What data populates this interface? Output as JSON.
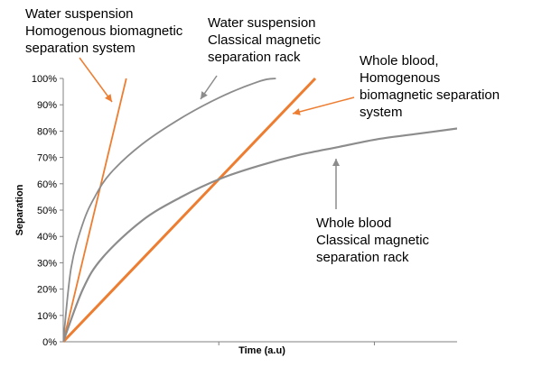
{
  "chart_data": {
    "type": "line",
    "xlabel": "Time (a.u)",
    "ylabel": "Separation",
    "xlim": [
      0,
      1
    ],
    "ylim": [
      0,
      100
    ],
    "y_ticks": [
      "0%",
      "10%",
      "20%",
      "30%",
      "40%",
      "50%",
      "60%",
      "70%",
      "80%",
      "90%",
      "100%"
    ],
    "grid": false,
    "series": [
      {
        "label": "Water suspension Homogenous biomagnetic separation system",
        "color": "#ed7d31",
        "x": [
          0,
          0.16
        ],
        "y": [
          0,
          100
        ]
      },
      {
        "label": "Water suspension Classical magnetic separation rack",
        "color": "#8c8c8c",
        "x": [
          0,
          0.02,
          0.05,
          0.08,
          0.12,
          0.2,
          0.3,
          0.4,
          0.5,
          0.54
        ],
        "y": [
          0,
          28,
          45,
          55,
          64,
          75,
          85,
          93,
          99,
          100
        ]
      },
      {
        "label": "Whole blood, Homogenous biomagnetic separation system",
        "color": "#ed7d31",
        "x": [
          0,
          0.64
        ],
        "y": [
          0,
          100
        ]
      },
      {
        "label": "Whole blood Classical magnetic separation rack",
        "color": "#8c8c8c",
        "x": [
          0,
          0.05,
          0.1,
          0.2,
          0.3,
          0.4,
          0.5,
          0.6,
          0.7,
          0.8,
          0.9,
          1.0
        ],
        "y": [
          0,
          20,
          32,
          46,
          55,
          62,
          67,
          71,
          74,
          77,
          79,
          81
        ]
      }
    ],
    "annotations": [
      {
        "id": "water-homog",
        "lines": [
          "Water suspension",
          "Homogenous biomagnetic",
          "separation system"
        ]
      },
      {
        "id": "water-classic",
        "lines": [
          "Water suspension",
          "Classical magnetic",
          "separation rack"
        ]
      },
      {
        "id": "blood-homog",
        "lines": [
          "Whole blood,",
          "Homogenous",
          "biomagnetic separation",
          "system"
        ]
      },
      {
        "id": "blood-classic",
        "lines": [
          "Whole blood",
          "Classical magnetic",
          "separation rack"
        ]
      }
    ]
  }
}
